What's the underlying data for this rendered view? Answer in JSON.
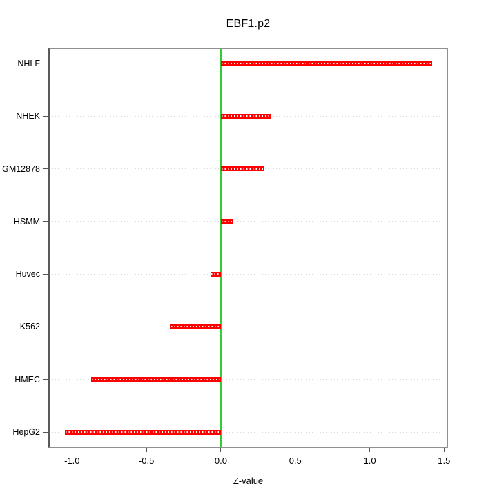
{
  "chart_data": {
    "type": "bar",
    "orientation": "horizontal",
    "title": "EBF1.p2",
    "xlabel": "Z-value",
    "ylabel": "",
    "categories": [
      "NHLF",
      "NHEK",
      "GM12878",
      "HSMM",
      "Huvec",
      "K562",
      "HMEC",
      "HepG2"
    ],
    "values": [
      1.42,
      0.34,
      0.29,
      0.08,
      -0.07,
      -0.34,
      -0.87,
      -1.05
    ],
    "xlim": [
      -1.15,
      1.517
    ],
    "xticks": [
      -1.0,
      -0.5,
      0.0,
      0.5,
      1.0,
      1.5
    ],
    "xtick_labels": [
      "-1.0",
      "-0.5",
      "0.0",
      "0.5",
      "1.0",
      "1.5"
    ],
    "grid": "dotted horizontal rows",
    "legend": "none",
    "zero_reference_line": 0,
    "colors": {
      "bar": "#ff0000",
      "bar_dotline": "#ffffff",
      "zero_line": "#33cc33",
      "grid_line": "#d9d9d9",
      "frame": "#8f8f8f",
      "text": "#000000"
    }
  }
}
